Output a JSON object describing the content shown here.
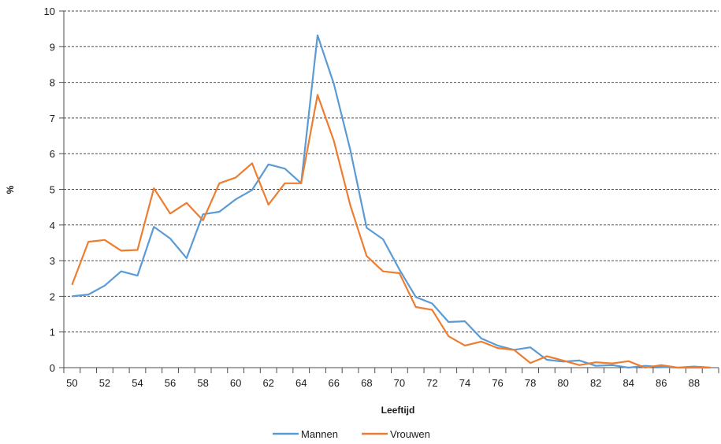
{
  "chart_data": {
    "type": "line",
    "title": "",
    "xlabel": "Leeftijd",
    "ylabel": "%",
    "x": [
      50,
      51,
      52,
      53,
      54,
      55,
      56,
      57,
      58,
      59,
      60,
      61,
      62,
      63,
      64,
      65,
      66,
      67,
      68,
      69,
      70,
      71,
      72,
      73,
      74,
      75,
      76,
      77,
      78,
      79,
      80,
      81,
      82,
      83,
      84,
      85,
      86,
      87,
      88,
      89
    ],
    "x_tick_labels": [
      "50",
      "52",
      "54",
      "56",
      "58",
      "60",
      "62",
      "64",
      "66",
      "68",
      "70",
      "72",
      "74",
      "76",
      "78",
      "80",
      "82",
      "84",
      "86",
      "88"
    ],
    "y_tick_labels": [
      "0",
      "1",
      "2",
      "3",
      "4",
      "5",
      "6",
      "7",
      "8",
      "9",
      "10"
    ],
    "ylim": [
      0,
      10
    ],
    "xlim": [
      49.5,
      89.5
    ],
    "grid": "horizontal dashed",
    "legend_position": "bottom-center",
    "series": [
      {
        "name": "Mannen",
        "color": "#5b9bd5",
        "values": [
          2.0,
          2.05,
          2.3,
          2.7,
          2.58,
          3.95,
          3.62,
          3.07,
          4.3,
          4.37,
          4.72,
          4.98,
          5.7,
          5.58,
          5.17,
          9.32,
          7.95,
          6.1,
          3.92,
          3.6,
          2.75,
          1.98,
          1.8,
          1.28,
          1.3,
          0.82,
          0.62,
          0.5,
          0.57,
          0.22,
          0.17,
          0.2,
          0.05,
          0.07,
          0.0,
          0.05,
          0.02,
          0.0,
          0.03,
          0.0
        ]
      },
      {
        "name": "Vrouwen",
        "color": "#ed7d31",
        "values": [
          2.32,
          3.53,
          3.58,
          3.28,
          3.3,
          5.03,
          4.32,
          4.62,
          4.13,
          5.17,
          5.33,
          5.73,
          4.57,
          5.17,
          5.17,
          7.65,
          6.35,
          4.55,
          3.13,
          2.7,
          2.65,
          1.7,
          1.62,
          0.88,
          0.62,
          0.73,
          0.55,
          0.5,
          0.13,
          0.32,
          0.2,
          0.07,
          0.15,
          0.12,
          0.18,
          0.0,
          0.07,
          0.0,
          0.0,
          0.0
        ]
      }
    ]
  }
}
